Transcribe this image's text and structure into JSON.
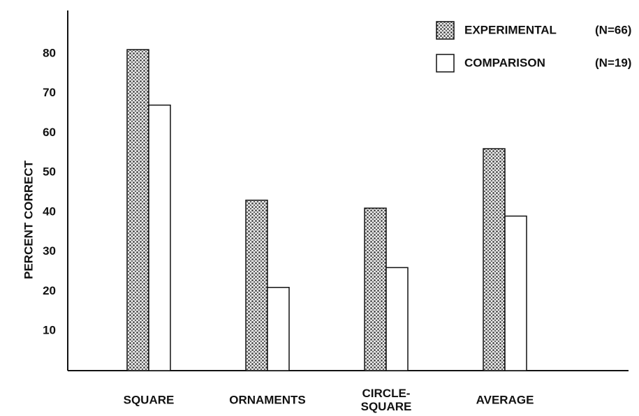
{
  "chart_data": {
    "type": "bar",
    "y_label": "PERCENT CORRECT",
    "categories": [
      "SQUARE",
      "ORNAMENTS",
      "CIRCLE-SQUARE",
      "AVERAGE"
    ],
    "series": [
      {
        "name": "EXPERIMENTAL",
        "n_label": "(N=66)",
        "color": "#555555",
        "pattern": "stipple",
        "values": [
          81,
          43,
          41,
          56
        ]
      },
      {
        "name": "COMPARISON",
        "n_label": "(N=19)",
        "color": "#ffffff",
        "values": [
          67,
          21,
          26,
          39
        ]
      }
    ],
    "ylim": [
      0,
      90
    ],
    "yticks": [
      10,
      20,
      30,
      40,
      50,
      60,
      70,
      80
    ],
    "grid": false,
    "legend": "upper right"
  }
}
